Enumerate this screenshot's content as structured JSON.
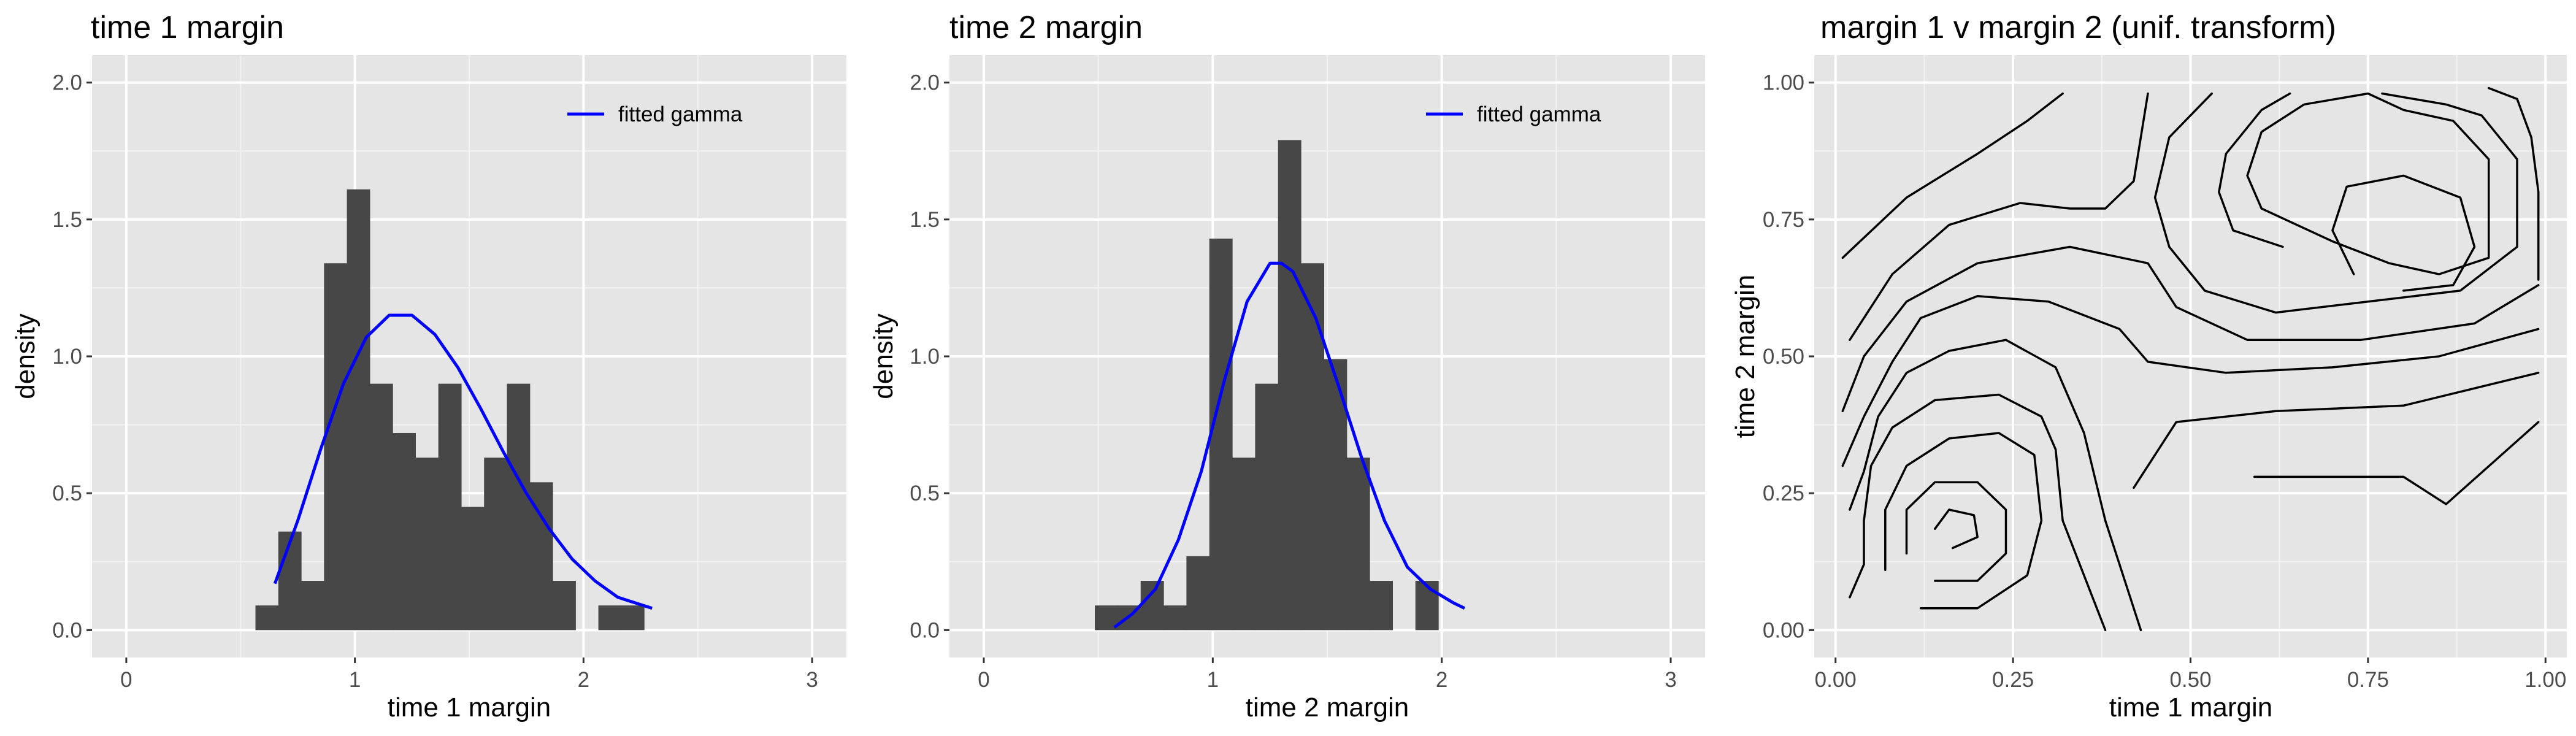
{
  "colors": {
    "panel_background": "#e5e5e5",
    "grid_major": "#ffffff",
    "grid_minor": "#f2f2f2",
    "histogram_fill": "#474747",
    "fitted_line": "#0000ff",
    "contour_line": "#000000"
  },
  "chart_data": [
    {
      "type": "bar",
      "title": "time 1 margin",
      "xlabel": "time 1 margin",
      "ylabel": "density",
      "xlim": [
        -0.15,
        3.15
      ],
      "ylim": [
        -0.1,
        2.1
      ],
      "xticks": [
        "0",
        "1",
        "2",
        "3"
      ],
      "yticks": [
        "0.0",
        "0.5",
        "1.0",
        "1.5",
        "2.0"
      ],
      "grid": true,
      "legend_position": "top-right",
      "histogram": {
        "name": "",
        "bin_start": 0.565,
        "bin_width": 0.1,
        "values": [
          0.09,
          0.36,
          0.18,
          1.34,
          1.61,
          0.9,
          0.72,
          0.63,
          0.9,
          0.45,
          0.63,
          0.9,
          0.54,
          0.18,
          0.0,
          0.09,
          0.09
        ]
      },
      "fitted_curve": {
        "name": "fitted gamma",
        "x": [
          0.65,
          0.75,
          0.85,
          0.95,
          1.05,
          1.15,
          1.25,
          1.35,
          1.45,
          1.55,
          1.65,
          1.75,
          1.85,
          1.95,
          2.05,
          2.15,
          2.3
        ],
        "y": [
          0.17,
          0.4,
          0.66,
          0.9,
          1.07,
          1.15,
          1.15,
          1.08,
          0.96,
          0.81,
          0.65,
          0.5,
          0.37,
          0.26,
          0.18,
          0.12,
          0.08
        ]
      }
    },
    {
      "type": "bar",
      "title": "time 2 margin",
      "xlabel": "time 2 margin",
      "ylabel": "density",
      "xlim": [
        -0.15,
        3.15
      ],
      "ylim": [
        -0.1,
        2.1
      ],
      "xticks": [
        "0",
        "1",
        "2",
        "3"
      ],
      "yticks": [
        "0.0",
        "0.5",
        "1.0",
        "1.5",
        "2.0"
      ],
      "grid": true,
      "legend_position": "top-right",
      "histogram": {
        "name": "",
        "bin_start": 0.485,
        "bin_width": 0.1,
        "values": [
          0.09,
          0.09,
          0.18,
          0.09,
          0.27,
          1.43,
          0.63,
          0.9,
          1.79,
          1.34,
          0.99,
          0.63,
          0.18,
          0.0,
          0.18
        ]
      },
      "fitted_curve": {
        "name": "fitted gamma",
        "x": [
          0.57,
          0.65,
          0.75,
          0.85,
          0.95,
          1.05,
          1.15,
          1.25,
          1.3,
          1.35,
          1.45,
          1.55,
          1.65,
          1.75,
          1.85,
          1.95,
          2.05,
          2.1
        ],
        "y": [
          0.01,
          0.06,
          0.15,
          0.33,
          0.58,
          0.91,
          1.2,
          1.34,
          1.34,
          1.31,
          1.14,
          0.89,
          0.63,
          0.4,
          0.23,
          0.15,
          0.1,
          0.08
        ]
      }
    },
    {
      "type": "contour",
      "title": "margin 1 v margin 2 (unif. transform)",
      "xlabel": "time 1 margin",
      "ylabel": "time 2 margin",
      "xlim": [
        -0.03,
        1.03
      ],
      "ylim": [
        -0.05,
        1.05
      ],
      "xticks": [
        "0.00",
        "0.25",
        "0.50",
        "0.75",
        "1.00"
      ],
      "yticks": [
        "0.00",
        "0.25",
        "0.50",
        "0.75",
        "1.00"
      ],
      "grid": true,
      "peaks": [
        {
          "x": 0.18,
          "y": 0.18
        },
        {
          "x": 0.8,
          "y": 0.73
        }
      ],
      "levels": [
        [
          [
            0.165,
            0.15
          ],
          [
            0.2,
            0.17
          ],
          [
            0.195,
            0.21
          ],
          [
            0.16,
            0.22
          ],
          [
            0.14,
            0.185
          ]
        ],
        [
          [
            0.14,
            0.09
          ],
          [
            0.2,
            0.09
          ],
          [
            0.24,
            0.14
          ],
          [
            0.24,
            0.22
          ],
          [
            0.2,
            0.27
          ],
          [
            0.14,
            0.27
          ],
          [
            0.1,
            0.22
          ],
          [
            0.1,
            0.14
          ]
        ],
        [
          [
            0.12,
            0.04
          ],
          [
            0.2,
            0.04
          ],
          [
            0.27,
            0.1
          ],
          [
            0.29,
            0.2
          ],
          [
            0.28,
            0.32
          ],
          [
            0.23,
            0.36
          ],
          [
            0.16,
            0.35
          ],
          [
            0.1,
            0.3
          ],
          [
            0.07,
            0.22
          ],
          [
            0.07,
            0.11
          ]
        ],
        [
          [
            0.8,
            0.62
          ],
          [
            0.87,
            0.63
          ],
          [
            0.9,
            0.7
          ],
          [
            0.88,
            0.79
          ],
          [
            0.8,
            0.83
          ],
          [
            0.72,
            0.81
          ],
          [
            0.7,
            0.73
          ],
          [
            0.73,
            0.65
          ]
        ],
        [
          [
            0.38,
            0.0
          ],
          [
            0.32,
            0.2
          ],
          [
            0.31,
            0.33
          ],
          [
            0.29,
            0.39
          ],
          [
            0.23,
            0.43
          ],
          [
            0.14,
            0.42
          ],
          [
            0.08,
            0.37
          ],
          [
            0.05,
            0.3
          ],
          [
            0.04,
            0.2
          ],
          [
            0.04,
            0.12
          ],
          [
            0.02,
            0.06
          ]
        ],
        [
          [
            0.43,
            0.0
          ],
          [
            0.38,
            0.2
          ],
          [
            0.35,
            0.36
          ],
          [
            0.31,
            0.48
          ],
          [
            0.24,
            0.53
          ],
          [
            0.16,
            0.51
          ],
          [
            0.1,
            0.47
          ],
          [
            0.06,
            0.39
          ],
          [
            0.04,
            0.29
          ],
          [
            0.02,
            0.22
          ]
        ],
        [
          [
            0.59,
            0.28
          ],
          [
            0.8,
            0.28
          ],
          [
            0.86,
            0.23
          ],
          [
            0.99,
            0.38
          ]
        ],
        [
          [
            0.42,
            0.26
          ],
          [
            0.48,
            0.38
          ],
          [
            0.62,
            0.4
          ],
          [
            0.8,
            0.41
          ],
          [
            0.99,
            0.47
          ]
        ],
        [
          [
            0.01,
            0.3
          ],
          [
            0.04,
            0.39
          ],
          [
            0.08,
            0.49
          ],
          [
            0.12,
            0.57
          ],
          [
            0.2,
            0.61
          ],
          [
            0.3,
            0.6
          ],
          [
            0.4,
            0.55
          ],
          [
            0.44,
            0.49
          ],
          [
            0.55,
            0.47
          ],
          [
            0.7,
            0.48
          ],
          [
            0.85,
            0.5
          ],
          [
            0.99,
            0.55
          ]
        ],
        [
          [
            0.01,
            0.4
          ],
          [
            0.04,
            0.5
          ],
          [
            0.1,
            0.6
          ],
          [
            0.2,
            0.67
          ],
          [
            0.33,
            0.7
          ],
          [
            0.44,
            0.67
          ],
          [
            0.48,
            0.59
          ],
          [
            0.58,
            0.53
          ],
          [
            0.74,
            0.53
          ],
          [
            0.9,
            0.56
          ],
          [
            0.99,
            0.63
          ]
        ],
        [
          [
            0.01,
            0.68
          ],
          [
            0.1,
            0.79
          ],
          [
            0.2,
            0.87
          ],
          [
            0.27,
            0.93
          ],
          [
            0.32,
            0.98
          ]
        ],
        [
          [
            0.02,
            0.53
          ],
          [
            0.08,
            0.65
          ],
          [
            0.16,
            0.74
          ],
          [
            0.26,
            0.78
          ],
          [
            0.33,
            0.77
          ],
          [
            0.38,
            0.77
          ],
          [
            0.42,
            0.82
          ],
          [
            0.44,
            0.98
          ]
        ],
        [
          [
            0.75,
            0.98
          ],
          [
            0.66,
            0.96
          ],
          [
            0.6,
            0.91
          ],
          [
            0.58,
            0.83
          ],
          [
            0.6,
            0.77
          ],
          [
            0.7,
            0.71
          ],
          [
            0.78,
            0.67
          ],
          [
            0.85,
            0.65
          ],
          [
            0.92,
            0.68
          ],
          [
            0.92,
            0.86
          ],
          [
            0.87,
            0.93
          ],
          [
            0.8,
            0.95
          ],
          [
            0.75,
            0.98
          ]
        ],
        [
          [
            0.53,
            0.98
          ],
          [
            0.47,
            0.9
          ],
          [
            0.45,
            0.79
          ],
          [
            0.47,
            0.7
          ],
          [
            0.52,
            0.62
          ],
          [
            0.62,
            0.58
          ],
          [
            0.75,
            0.6
          ],
          [
            0.88,
            0.62
          ],
          [
            0.96,
            0.7
          ],
          [
            0.96,
            0.86
          ],
          [
            0.91,
            0.94
          ],
          [
            0.86,
            0.96
          ],
          [
            0.77,
            0.98
          ]
        ],
        [
          [
            0.92,
            0.99
          ],
          [
            0.96,
            0.97
          ],
          [
            0.98,
            0.9
          ],
          [
            0.99,
            0.8
          ],
          [
            0.99,
            0.7
          ],
          [
            0.99,
            0.64
          ]
        ],
        [
          [
            0.64,
            0.98
          ],
          [
            0.6,
            0.95
          ],
          [
            0.55,
            0.87
          ],
          [
            0.54,
            0.8
          ],
          [
            0.56,
            0.73
          ],
          [
            0.63,
            0.7
          ]
        ]
      ]
    }
  ]
}
